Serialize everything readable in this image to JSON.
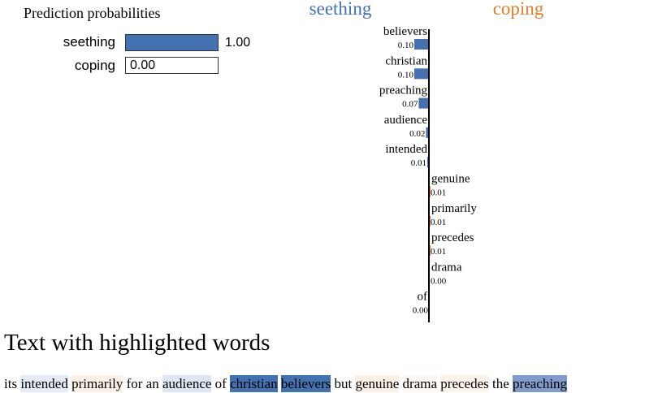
{
  "prediction": {
    "title": "Prediction probabilities",
    "classes": [
      {
        "name": "seething",
        "probability": 1.0,
        "value_text": "1.00",
        "color": "#4471b0"
      },
      {
        "name": "coping",
        "probability": 0.0,
        "value_text": "0.00",
        "color": "#e27f28"
      }
    ]
  },
  "chart_data": {
    "type": "bar",
    "orientation": "horizontal",
    "class_headers": {
      "left": "seething",
      "right": "coping"
    },
    "colors": {
      "left": "#4471b0",
      "right": "#e27f28",
      "axis": "#000000"
    },
    "max_weight": 0.1,
    "features": [
      {
        "word": "believers",
        "weight": 0.1,
        "label": "0.10",
        "side": "left"
      },
      {
        "word": "christian",
        "weight": 0.1,
        "label": "0.10",
        "side": "left"
      },
      {
        "word": "preaching",
        "weight": 0.07,
        "label": "0.07",
        "side": "left"
      },
      {
        "word": "audience",
        "weight": 0.02,
        "label": "0.02",
        "side": "left"
      },
      {
        "word": "intended",
        "weight": 0.01,
        "label": "0.01",
        "side": "left"
      },
      {
        "word": "genuine",
        "weight": 0.01,
        "label": "0.01",
        "side": "right"
      },
      {
        "word": "primarily",
        "weight": 0.01,
        "label": "0.01",
        "side": "right"
      },
      {
        "word": "precedes",
        "weight": 0.01,
        "label": "0.01",
        "side": "right"
      },
      {
        "word": "drama",
        "weight": 0.0,
        "label": "0.00",
        "side": "right"
      },
      {
        "word": "of",
        "weight": 0.0,
        "label": "0.00",
        "side": "left"
      }
    ]
  },
  "highlighted_text": {
    "title": "Text with highlighted words",
    "tokens": [
      {
        "text": "its",
        "highlight": ""
      },
      {
        "text": "intended",
        "highlight": "#e6ecf6"
      },
      {
        "text": "primarily",
        "highlight": "#fdf1e7"
      },
      {
        "text": "for",
        "highlight": ""
      },
      {
        "text": "an",
        "highlight": ""
      },
      {
        "text": "audience",
        "highlight": "#dde6f2"
      },
      {
        "text": "of",
        "highlight": ""
      },
      {
        "text": "christian",
        "highlight": "#4471b0"
      },
      {
        "text": "believers",
        "highlight": "#4471b0"
      },
      {
        "text": " but",
        "highlight": ""
      },
      {
        "text": "genuine",
        "highlight": "#fdf1e7"
      },
      {
        "text": "drama",
        "highlight": "#fef9f5"
      },
      {
        "text": "precedes",
        "highlight": "#fdf4ec"
      },
      {
        "text": "the",
        "highlight": ""
      },
      {
        "text": "preaching",
        "highlight": "#7f9ccb"
      }
    ]
  }
}
